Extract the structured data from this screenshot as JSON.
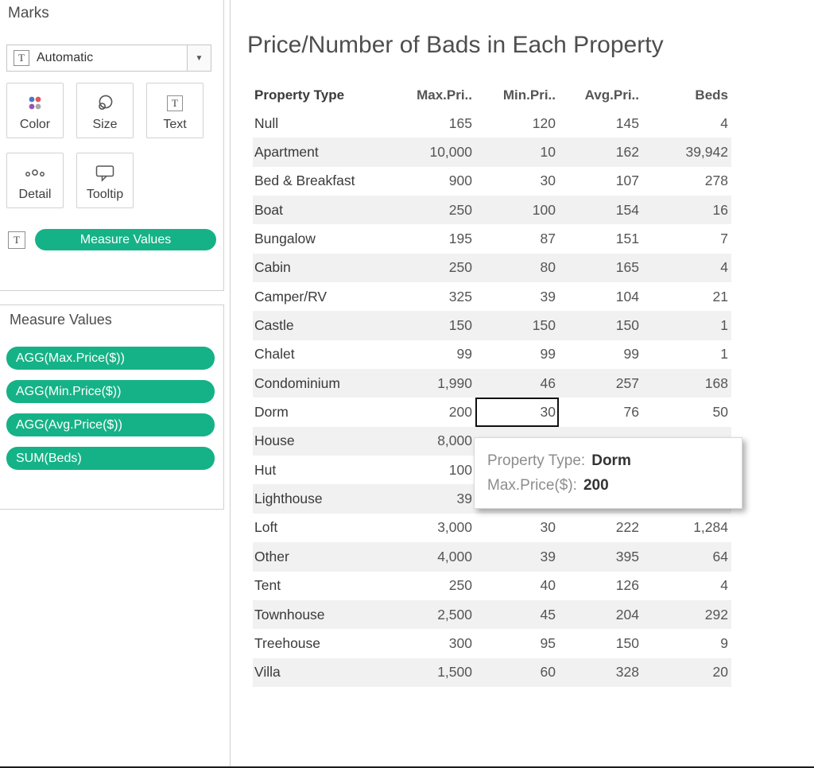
{
  "colors": {
    "pill_green": "#16B287",
    "band_gray": "#F1F1F1"
  },
  "marks_panel": {
    "title": "Marks",
    "mark_type": "Automatic",
    "buttons": [
      {
        "label": "Color",
        "icon": "color-icon"
      },
      {
        "label": "Size",
        "icon": "size-icon"
      },
      {
        "label": "Text",
        "icon": "text-icon"
      },
      {
        "label": "Detail",
        "icon": "detail-icon"
      },
      {
        "label": "Tooltip",
        "icon": "tooltip-icon"
      }
    ],
    "measure_values_pill": "Measure Values"
  },
  "measure_values_panel": {
    "title": "Measure Values",
    "pills": [
      "AGG(Max.Price($))",
      "AGG(Min.Price($))",
      "AGG(Avg.Price($))",
      "SUM(Beds)"
    ]
  },
  "main": {
    "title": "Price/Number of Bads in Each Property",
    "table": {
      "columns": [
        "Property Type",
        "Max.Pri..",
        "Min.Pri..",
        "Avg.Pri..",
        "Beds"
      ],
      "rows": [
        {
          "name": "Null",
          "values": [
            "165",
            "120",
            "145",
            "4"
          ]
        },
        {
          "name": "Apartment",
          "values": [
            "10,000",
            "10",
            "162",
            "39,942"
          ]
        },
        {
          "name": "Bed & Breakfast",
          "values": [
            "900",
            "30",
            "107",
            "278"
          ]
        },
        {
          "name": "Boat",
          "values": [
            "250",
            "100",
            "154",
            "16"
          ]
        },
        {
          "name": "Bungalow",
          "values": [
            "195",
            "87",
            "151",
            "7"
          ]
        },
        {
          "name": "Cabin",
          "values": [
            "250",
            "80",
            "165",
            "4"
          ]
        },
        {
          "name": "Camper/RV",
          "values": [
            "325",
            "39",
            "104",
            "21"
          ]
        },
        {
          "name": "Castle",
          "values": [
            "150",
            "150",
            "150",
            "1"
          ]
        },
        {
          "name": "Chalet",
          "values": [
            "99",
            "99",
            "99",
            "1"
          ]
        },
        {
          "name": "Condominium",
          "values": [
            "1,990",
            "46",
            "257",
            "168"
          ]
        },
        {
          "name": "Dorm",
          "values": [
            "200",
            "30",
            "76",
            "50"
          ]
        },
        {
          "name": "House",
          "values": [
            "8,000",
            "",
            "",
            ""
          ]
        },
        {
          "name": "Hut",
          "values": [
            "100",
            "",
            "",
            ""
          ]
        },
        {
          "name": "Lighthouse",
          "values": [
            "39",
            "",
            "",
            ""
          ]
        },
        {
          "name": "Loft",
          "values": [
            "3,000",
            "30",
            "222",
            "1,284"
          ]
        },
        {
          "name": "Other",
          "values": [
            "4,000",
            "39",
            "395",
            "64"
          ]
        },
        {
          "name": "Tent",
          "values": [
            "250",
            "40",
            "126",
            "4"
          ]
        },
        {
          "name": "Townhouse",
          "values": [
            "2,500",
            "45",
            "204",
            "292"
          ]
        },
        {
          "name": "Treehouse",
          "values": [
            "300",
            "95",
            "150",
            "9"
          ]
        },
        {
          "name": "Villa",
          "values": [
            "1,500",
            "60",
            "328",
            "20"
          ]
        }
      ],
      "selected_cell": {
        "row": 10,
        "col": 1
      }
    },
    "tooltip": {
      "lines": [
        {
          "label": "Property Type:",
          "value": "Dorm"
        },
        {
          "label": "Max.Price($):",
          "value": "200"
        }
      ]
    }
  }
}
